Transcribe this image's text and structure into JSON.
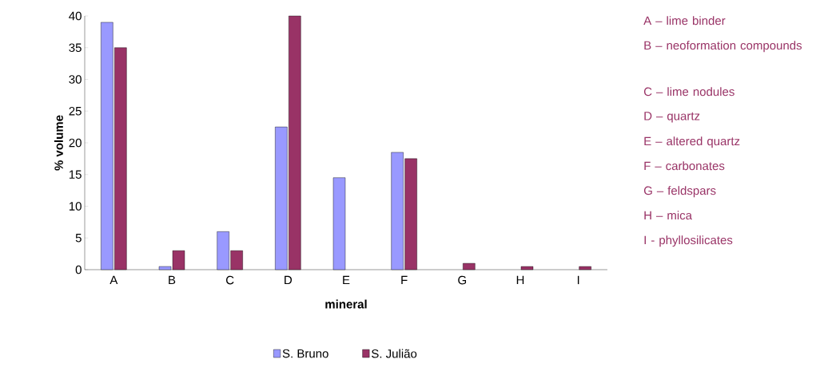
{
  "chart_data": {
    "type": "bar",
    "xlabel": "mineral",
    "ylabel": "% volume",
    "categories": [
      "A",
      "B",
      "C",
      "D",
      "E",
      "F",
      "G",
      "H",
      "I"
    ],
    "series": [
      {
        "name": "S. Bruno",
        "color": "#9999ff",
        "values": [
          39,
          0.5,
          6,
          22.5,
          14.5,
          18.5,
          null,
          null,
          null
        ]
      },
      {
        "name": "S. Julião",
        "color": "#993366",
        "values": [
          35,
          3,
          3,
          40,
          null,
          17.5,
          1,
          0.5,
          0.5
        ]
      }
    ],
    "ylim": [
      0,
      40
    ],
    "yticks": [
      0,
      5,
      10,
      15,
      20,
      25,
      30,
      35,
      40
    ],
    "grid": false,
    "legend": "bottom",
    "annotations": [
      "A – lime binder",
      "B – neoformation compounds",
      "C – lime nodules",
      "D – quartz",
      "E – altered quartz",
      "F – carbonates",
      "G – feldspars",
      "H – mica",
      "I - phyllosilicates"
    ]
  }
}
